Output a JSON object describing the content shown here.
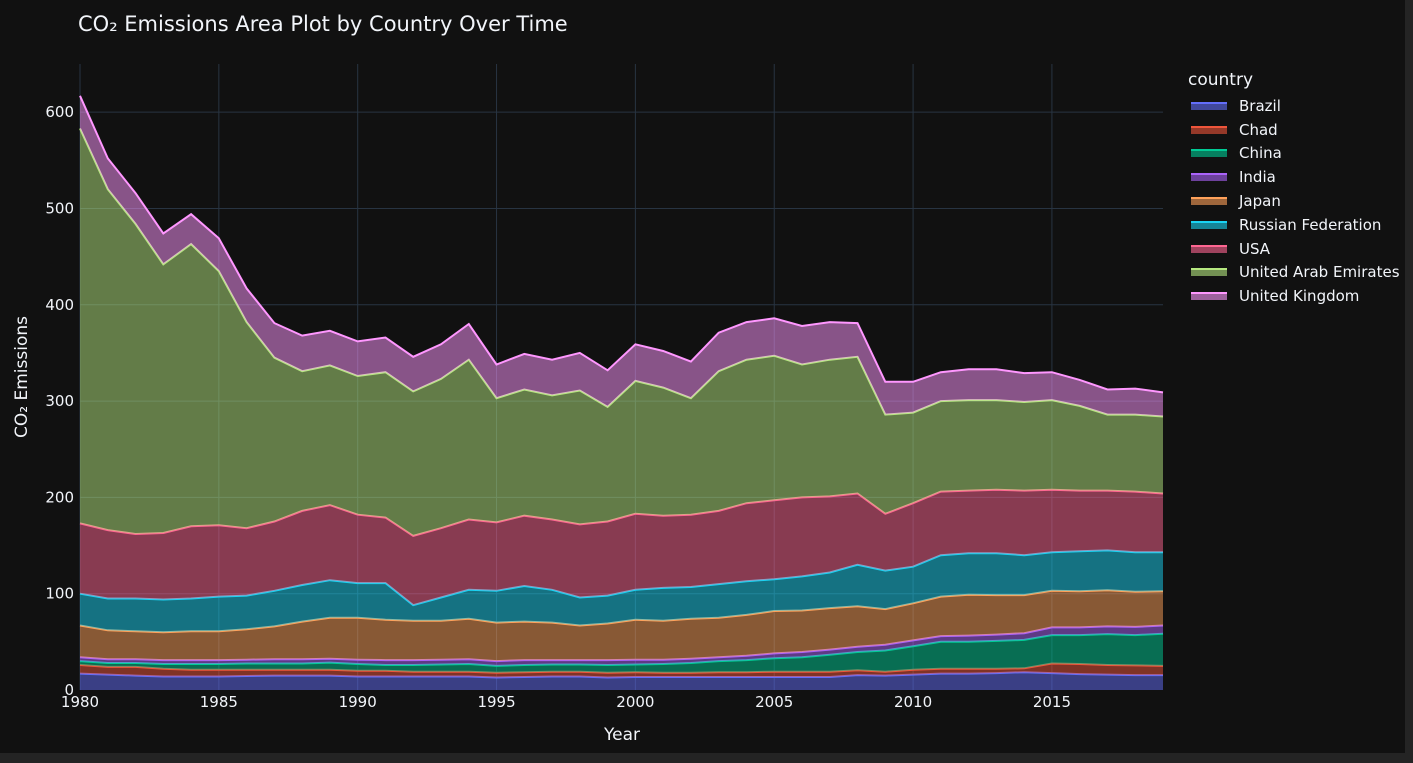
{
  "chart_data": {
    "type": "area",
    "title": "CO₂ Emissions Area Plot by Country Over Time",
    "xlabel": "Year",
    "ylabel": "CO₂ Emissions",
    "xlim": [
      1980,
      2019
    ],
    "ylim": [
      0,
      650
    ],
    "x_ticks": [
      1980,
      1985,
      1990,
      1995,
      2000,
      2005,
      2010,
      2015
    ],
    "y_ticks": [
      0,
      100,
      200,
      300,
      400,
      500,
      600
    ],
    "legend_title": "country",
    "x": [
      1980,
      1981,
      1982,
      1983,
      1984,
      1985,
      1986,
      1987,
      1988,
      1989,
      1990,
      1991,
      1992,
      1993,
      1994,
      1995,
      1996,
      1997,
      1998,
      1999,
      2000,
      2001,
      2002,
      2003,
      2004,
      2005,
      2006,
      2007,
      2008,
      2009,
      2010,
      2011,
      2012,
      2013,
      2014,
      2015,
      2016,
      2017,
      2018,
      2019
    ],
    "stacked_totals": [
      {
        "name": "Brazil",
        "color": "#636efa",
        "values": [
          17,
          16,
          15,
          14,
          14,
          14,
          14.5,
          15,
          15,
          15,
          14,
          14,
          14,
          14,
          14,
          13,
          13.5,
          14,
          14,
          13,
          13.5,
          13.5,
          13.5,
          13.5,
          13.5,
          13.5,
          13.5,
          13.5,
          15.5,
          15,
          16,
          17,
          17,
          17.5,
          18.5,
          17.5,
          16.5,
          16,
          15.5,
          15.5
        ]
      },
      {
        "name": "Chad",
        "color": "#ef553b",
        "values": [
          26,
          24,
          24,
          22,
          21,
          21,
          21,
          21,
          21,
          21,
          20,
          20,
          19,
          19,
          19,
          18,
          18.5,
          19,
          19,
          18,
          18.5,
          18,
          18,
          18.5,
          18.5,
          19,
          19,
          19,
          20.5,
          19,
          21,
          22,
          22,
          22,
          22.5,
          27.5,
          27,
          26,
          25.5,
          25
        ]
      },
      {
        "name": "China",
        "color": "#00cc96",
        "values": [
          30,
          28,
          28,
          27,
          27,
          27,
          27.5,
          27.5,
          27.5,
          28.5,
          27,
          26,
          26,
          26.5,
          27,
          25,
          26,
          26.5,
          26.5,
          26,
          26.5,
          27,
          28,
          30,
          31,
          33,
          34,
          36.5,
          39.5,
          41,
          45.5,
          50,
          50,
          51,
          52,
          57,
          57,
          58,
          57,
          58.5
        ]
      },
      {
        "name": "India",
        "color": "#ab63fa",
        "values": [
          34,
          32,
          32,
          31,
          31,
          31,
          31.5,
          32,
          32,
          32.5,
          31.5,
          31,
          31,
          31.5,
          32,
          30,
          31,
          31,
          31,
          31,
          31.5,
          31.5,
          32.5,
          34,
          35.5,
          38,
          39.5,
          42,
          45,
          47,
          51.5,
          56,
          56.5,
          57.5,
          59,
          65,
          65,
          66,
          65.5,
          67
        ]
      },
      {
        "name": "Japan",
        "color": "#ffa15a",
        "values": [
          67,
          62,
          61,
          60,
          61,
          61,
          63,
          66,
          71,
          75,
          75,
          73,
          72,
          72,
          74,
          70,
          71,
          70,
          67,
          69,
          73,
          72,
          74,
          75,
          78,
          82,
          82.5,
          85,
          87,
          84,
          90,
          97,
          99,
          98.5,
          98.5,
          103,
          102.5,
          103.5,
          102,
          102.5
        ]
      },
      {
        "name": "Russian Federation",
        "color": "#19d3f3",
        "values": [
          100,
          95,
          95,
          94,
          95,
          97,
          98,
          103,
          109,
          114,
          111,
          111,
          88,
          96,
          104,
          103,
          108,
          104,
          96,
          98,
          104,
          106,
          107,
          110,
          113,
          115,
          118,
          122,
          130,
          124,
          128,
          140,
          142,
          142,
          140,
          143,
          144,
          145,
          143,
          143
        ]
      },
      {
        "name": "USA",
        "color": "#ff6692",
        "values": [
          173,
          166,
          162,
          163,
          170,
          171,
          168,
          175,
          186,
          192,
          182,
          179,
          160,
          168,
          177,
          174,
          181,
          177,
          172,
          175,
          183,
          181,
          182,
          186,
          194,
          197,
          200,
          201,
          204,
          183,
          194,
          206,
          207,
          208,
          207,
          208,
          207,
          207,
          206,
          204
        ]
      },
      {
        "name": "United Arab Emirates",
        "color": "#b6e880",
        "values": [
          583,
          520,
          484,
          442,
          463,
          435,
          382,
          345,
          331,
          337,
          326,
          330,
          310,
          323,
          343,
          303,
          312,
          306,
          311,
          294,
          321,
          314,
          303,
          331,
          343,
          347,
          338,
          343,
          346,
          286,
          288,
          300,
          301,
          301,
          299,
          301,
          295,
          286,
          286,
          284
        ]
      },
      {
        "name": "United Kingdom",
        "color": "#ff97ff",
        "values": [
          617,
          552,
          516,
          474,
          494,
          469,
          417,
          381,
          368,
          373,
          362,
          366,
          346,
          359,
          380,
          338,
          349,
          343,
          350,
          332,
          359,
          352,
          341,
          371,
          382,
          386,
          378,
          382,
          381,
          320,
          320,
          330,
          333,
          333,
          329,
          330,
          322,
          312,
          313,
          309
        ]
      }
    ]
  }
}
